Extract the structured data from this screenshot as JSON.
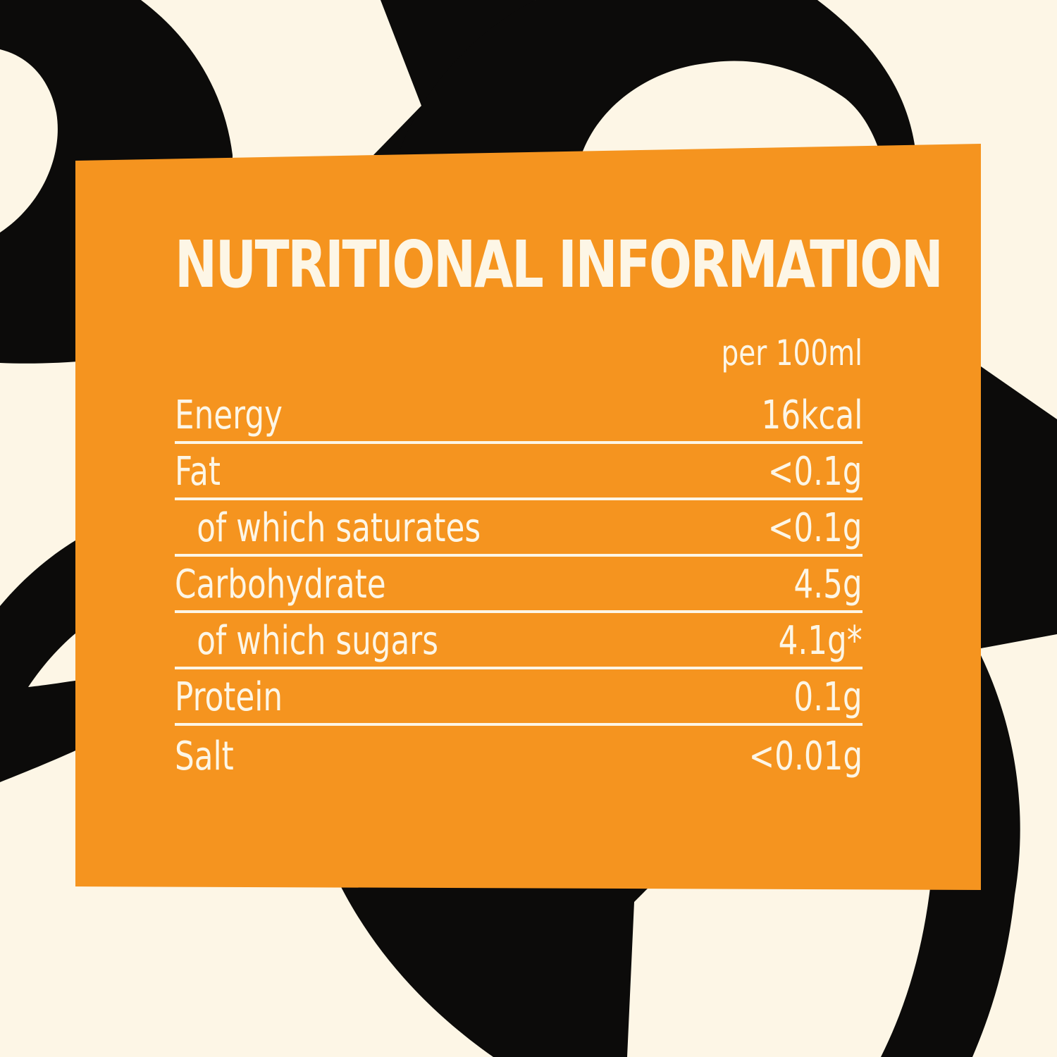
{
  "colors": {
    "cream": "#fdf6e6",
    "black": "#0c0b0a",
    "orange": "#f5941f"
  },
  "panel": {
    "title": "NUTRITIONAL INFORMATION",
    "per_label": "per 100ml",
    "rows": [
      {
        "label": "Energy",
        "value": "16kcal",
        "sub": false
      },
      {
        "label": "Fat",
        "value": "<0.1g",
        "sub": false
      },
      {
        "label": "of which saturates",
        "value": "<0.1g",
        "sub": true
      },
      {
        "label": "Carbohydrate",
        "value": "4.5g",
        "sub": false
      },
      {
        "label": "of which sugars",
        "value": "4.1g*",
        "sub": true
      },
      {
        "label": "Protein",
        "value": "0.1g",
        "sub": false
      },
      {
        "label": "Salt",
        "value": "<0.01g",
        "sub": false
      }
    ]
  }
}
